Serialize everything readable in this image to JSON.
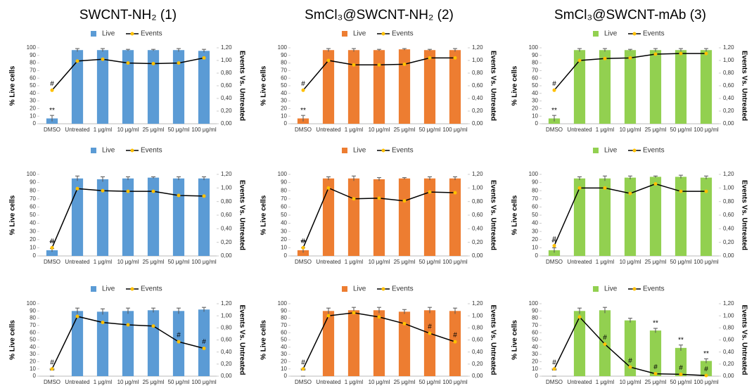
{
  "chart_data": [
    {
      "type": "bar",
      "title": "SWCNT-NH₂ (1)",
      "categories": [
        "DMSO",
        "Untreated",
        "1 μg/ml",
        "10 μg/ml",
        "25 μg/ml",
        "50 μg/ml",
        "100 μg/ml"
      ],
      "ylabel": "% Live cells",
      "y2label": "Events Vs. Untreated",
      "ylim": [
        0,
        100
      ],
      "yticks": [
        0,
        10,
        20,
        30,
        40,
        50,
        60,
        70,
        80,
        90,
        100
      ],
      "y2lim": [
        0,
        1.2
      ],
      "y2ticks": [
        {
          "value": 0,
          "label": "0,00"
        },
        {
          "value": 0.2,
          "label": "0,20"
        },
        {
          "value": 0.4,
          "label": "0,40"
        },
        {
          "value": 0.6,
          "label": "0,60"
        },
        {
          "value": 0.8,
          "label": "0,80"
        },
        {
          "value": 1,
          "label": "1,00"
        },
        {
          "value": 1.2,
          "label": "1,20"
        }
      ],
      "series": [
        {
          "name": "Live",
          "color": "#5b9bd5",
          "values": [
            7,
            97,
            97,
            97,
            97,
            97,
            96
          ],
          "errors": [
            4,
            2,
            2,
            1,
            1,
            2,
            2
          ],
          "annotations": [
            "**",
            null,
            null,
            null,
            null,
            null,
            null
          ]
        },
        {
          "name": "Events",
          "color": "#000000",
          "marker_color": "#ffc000",
          "axis": "y2",
          "values": [
            0.53,
            0.99,
            1.02,
            0.96,
            0.95,
            0.96,
            1.04
          ],
          "annotations": [
            "#",
            null,
            null,
            null,
            null,
            null,
            null
          ]
        }
      ]
    },
    {
      "type": "bar",
      "title": "SmCl₃@SWCNT-NH₂ (2)",
      "categories": [
        "DMSO",
        "Untreated",
        "1 μg/ml",
        "10 μg/ml",
        "25 μg/ml",
        "50 μg/ml",
        "100 μg/ml"
      ],
      "ylabel": "% Live cells",
      "y2label": "Events Vs. Untreated",
      "ylim": [
        0,
        100
      ],
      "yticks": [
        0,
        10,
        20,
        30,
        40,
        50,
        60,
        70,
        80,
        90,
        100
      ],
      "y2lim": [
        0,
        1.2
      ],
      "y2ticks": [
        {
          "value": 0,
          "label": "0,00"
        },
        {
          "value": 0.2,
          "label": "0,20"
        },
        {
          "value": 0.4,
          "label": "0,40"
        },
        {
          "value": 0.6,
          "label": "0,60"
        },
        {
          "value": 0.8,
          "label": "0,80"
        },
        {
          "value": 1,
          "label": "1,00"
        },
        {
          "value": 1.2,
          "label": "1,20"
        }
      ],
      "series": [
        {
          "name": "Live",
          "color": "#ed7d31",
          "values": [
            7,
            97,
            97,
            97,
            98,
            97,
            97
          ],
          "errors": [
            4,
            2,
            2,
            1,
            1,
            1,
            2
          ],
          "annotations": [
            "**",
            null,
            null,
            null,
            null,
            null,
            null
          ]
        },
        {
          "name": "Events",
          "color": "#000000",
          "marker_color": "#ffc000",
          "axis": "y2",
          "values": [
            0.53,
            1.0,
            0.93,
            0.93,
            0.94,
            1.04,
            1.04
          ],
          "annotations": [
            "#",
            null,
            null,
            null,
            null,
            null,
            null
          ]
        }
      ]
    },
    {
      "type": "bar",
      "title": "SmCl₃@SWCNT-mAb (3)",
      "categories": [
        "DMSO",
        "Untreated",
        "1 μg/ml",
        "10 μg/ml",
        "25 μg/ml",
        "50 μg/ml",
        "100 μg/ml"
      ],
      "ylabel": "% Live cells",
      "y2label": "Events Vs. Untreated",
      "ylim": [
        0,
        100
      ],
      "yticks": [
        0,
        10,
        20,
        30,
        40,
        50,
        60,
        70,
        80,
        90,
        100
      ],
      "y2lim": [
        0,
        1.2
      ],
      "y2ticks": [
        {
          "value": 0,
          "label": "0,00"
        },
        {
          "value": 0.2,
          "label": "0,20"
        },
        {
          "value": 0.4,
          "label": "0,40"
        },
        {
          "value": 0.6,
          "label": "0,60"
        },
        {
          "value": 0.8,
          "label": "0,80"
        },
        {
          "value": 1,
          "label": "1,00"
        },
        {
          "value": 1.2,
          "label": "1,20"
        }
      ],
      "series": [
        {
          "name": "Live",
          "color": "#92d050",
          "values": [
            7,
            97,
            97,
            97,
            97,
            97,
            97
          ],
          "errors": [
            4,
            2,
            2,
            1,
            2,
            2,
            2
          ],
          "annotations": [
            "**",
            null,
            null,
            null,
            null,
            null,
            null
          ]
        },
        {
          "name": "Events",
          "color": "#000000",
          "marker_color": "#ffc000",
          "axis": "y2",
          "values": [
            0.53,
            1.0,
            1.03,
            1.04,
            1.1,
            1.11,
            1.11
          ],
          "annotations": [
            "#",
            null,
            null,
            null,
            null,
            null,
            null
          ]
        }
      ]
    },
    {
      "type": "bar",
      "categories": [
        "DMSO",
        "Untreated",
        "1 μg/ml",
        "10 μg/ml",
        "25 μg/ml",
        "50 μg/ml",
        "100 μg/ml"
      ],
      "ylabel": "% Live cells",
      "y2label": "Events Vs. Untreated",
      "ylim": [
        0,
        100
      ],
      "yticks": [
        0,
        10,
        20,
        30,
        40,
        50,
        60,
        70,
        80,
        90,
        100
      ],
      "y2lim": [
        0,
        1.2
      ],
      "y2ticks": [
        {
          "value": 0,
          "label": "0,00"
        },
        {
          "value": 0.2,
          "label": "0,20"
        },
        {
          "value": 0.4,
          "label": "0,40"
        },
        {
          "value": 0.6,
          "label": "0,60"
        },
        {
          "value": 0.8,
          "label": "0,80"
        },
        {
          "value": 1,
          "label": "1,00"
        },
        {
          "value": 1.2,
          "label": "1,20"
        }
      ],
      "series": [
        {
          "name": "Live",
          "color": "#5b9bd5",
          "values": [
            7,
            95,
            94,
            95,
            96,
            95,
            95
          ],
          "errors": [
            2,
            3,
            3,
            2,
            1,
            2,
            2
          ],
          "annotations": [
            "**",
            null,
            null,
            null,
            null,
            null,
            null
          ]
        },
        {
          "name": "Events",
          "color": "#000000",
          "marker_color": "#ffc000",
          "axis": "y2",
          "values": [
            0.12,
            0.99,
            0.96,
            0.95,
            0.95,
            0.89,
            0.88
          ],
          "annotations": [
            "#",
            null,
            null,
            null,
            null,
            null,
            null
          ]
        }
      ]
    },
    {
      "type": "bar",
      "categories": [
        "DMSO",
        "Untreated",
        "1 μg/ml",
        "10 μg/ml",
        "25 μg/ml",
        "50 μg/ml",
        "100 μg/ml"
      ],
      "ylabel": "% Live cells",
      "y2label": "Events Vs. Untreated",
      "ylim": [
        0,
        100
      ],
      "yticks": [
        0,
        10,
        20,
        30,
        40,
        50,
        60,
        70,
        80,
        90,
        100
      ],
      "y2lim": [
        0,
        1.2
      ],
      "y2ticks": [
        {
          "value": 0,
          "label": "0,00"
        },
        {
          "value": 0.2,
          "label": "0,20"
        },
        {
          "value": 0.4,
          "label": "0,40"
        },
        {
          "value": 0.6,
          "label": "0,60"
        },
        {
          "value": 0.8,
          "label": "0,80"
        },
        {
          "value": 1,
          "label": "1,00"
        },
        {
          "value": 1.2,
          "label": "1,20"
        }
      ],
      "series": [
        {
          "name": "Live",
          "color": "#ed7d31",
          "values": [
            7,
            95,
            95,
            94,
            95,
            95,
            95
          ],
          "errors": [
            3,
            2,
            3,
            2,
            1,
            2,
            2
          ],
          "annotations": [
            "**",
            null,
            null,
            null,
            null,
            null,
            null
          ]
        },
        {
          "name": "Events",
          "color": "#000000",
          "marker_color": "#ffc000",
          "axis": "y2",
          "values": [
            0.12,
            1.0,
            0.84,
            0.85,
            0.81,
            0.94,
            0.93
          ],
          "annotations": [
            "#",
            null,
            null,
            null,
            null,
            null,
            null
          ]
        }
      ]
    },
    {
      "type": "bar",
      "categories": [
        "DMSO",
        "Untreated",
        "1 μg/ml",
        "10 μg/ml",
        "25 μg/ml",
        "50 μg/ml",
        "100 μg/ml"
      ],
      "ylabel": "% Live cells",
      "y2label": "Events Vs. Untreated",
      "ylim": [
        0,
        100
      ],
      "yticks": [
        0,
        10,
        20,
        30,
        40,
        50,
        60,
        70,
        80,
        90,
        100
      ],
      "y2lim": [
        0,
        1.2
      ],
      "y2ticks": [
        {
          "value": 0,
          "label": "0,00"
        },
        {
          "value": 0.2,
          "label": "0,20"
        },
        {
          "value": 0.4,
          "label": "0,40"
        },
        {
          "value": 0.6,
          "label": "0,60"
        },
        {
          "value": 0.8,
          "label": "0,80"
        },
        {
          "value": 1,
          "label": "1,00"
        },
        {
          "value": 1.2,
          "label": "1,20"
        }
      ],
      "series": [
        {
          "name": "Live",
          "color": "#92d050",
          "values": [
            7,
            95,
            95,
            96,
            97,
            97,
            96
          ],
          "errors": [
            3,
            2,
            3,
            2,
            1,
            2,
            2
          ],
          "annotations": [
            "**",
            null,
            null,
            null,
            null,
            null,
            null
          ]
        },
        {
          "name": "Events",
          "color": "#000000",
          "marker_color": "#ffc000",
          "axis": "y2",
          "values": [
            0.15,
            1.0,
            1.0,
            0.92,
            1.06,
            0.95,
            0.95
          ],
          "annotations": [
            "#",
            null,
            null,
            null,
            null,
            null,
            null
          ]
        }
      ]
    },
    {
      "type": "bar",
      "categories": [
        "DMSO",
        "Untreated",
        "1 μg/ml",
        "10 μg/ml",
        "25 μg/ml",
        "50 μg/ml",
        "100 μg/ml"
      ],
      "ylabel": "% Live cells",
      "y2label": "Events Vs. Untreated",
      "ylim": [
        0,
        100
      ],
      "yticks": [
        0,
        10,
        20,
        30,
        40,
        50,
        60,
        70,
        80,
        90,
        100
      ],
      "y2lim": [
        0,
        1.2
      ],
      "y2ticks": [
        {
          "value": 0,
          "label": "0,00"
        },
        {
          "value": 0.2,
          "label": "0,20"
        },
        {
          "value": 0.4,
          "label": "0,40"
        },
        {
          "value": 0.6,
          "label": "0,60"
        },
        {
          "value": 0.8,
          "label": "0,80"
        },
        {
          "value": 1,
          "label": "1,00"
        },
        {
          "value": 1.2,
          "label": "1,20"
        }
      ],
      "series": [
        {
          "name": "Live",
          "color": "#5b9bd5",
          "values": [
            0,
            90,
            89,
            90,
            91,
            90,
            92
          ],
          "errors": [
            0,
            4,
            4,
            4,
            3,
            4,
            3
          ],
          "annotations": [
            "**",
            null,
            null,
            null,
            null,
            null,
            null
          ]
        },
        {
          "name": "Events",
          "color": "#000000",
          "marker_color": "#ffc000",
          "axis": "y2",
          "values": [
            0.12,
            0.99,
            0.89,
            0.85,
            0.83,
            0.57,
            0.46
          ],
          "annotations": [
            "#",
            null,
            null,
            null,
            null,
            "#",
            "#"
          ]
        }
      ]
    },
    {
      "type": "bar",
      "categories": [
        "DMSO",
        "Untreated",
        "1 μg/ml",
        "10 μg/ml",
        "25 μg/ml",
        "50 μg/ml",
        "100 μg/ml"
      ],
      "ylabel": "% Live cells",
      "y2label": "Events Vs. Untreated",
      "ylim": [
        0,
        100
      ],
      "yticks": [
        0,
        10,
        20,
        30,
        40,
        50,
        60,
        70,
        80,
        90,
        100
      ],
      "y2lim": [
        0,
        1.2
      ],
      "y2ticks": [
        {
          "value": 0,
          "label": "0,00"
        },
        {
          "value": 0.2,
          "label": "0,20"
        },
        {
          "value": 0.4,
          "label": "0,40"
        },
        {
          "value": 0.6,
          "label": "0,60"
        },
        {
          "value": 0.8,
          "label": "0,80"
        },
        {
          "value": 1,
          "label": "1,00"
        },
        {
          "value": 1.2,
          "label": "1,20"
        }
      ],
      "series": [
        {
          "name": "Live",
          "color": "#ed7d31",
          "values": [
            0,
            90,
            91,
            91,
            89,
            91,
            90
          ],
          "errors": [
            0,
            4,
            4,
            4,
            3,
            4,
            4
          ],
          "annotations": [
            "**",
            null,
            null,
            null,
            null,
            null,
            null
          ]
        },
        {
          "name": "Events",
          "color": "#000000",
          "marker_color": "#ffc000",
          "axis": "y2",
          "values": [
            0.12,
            1.0,
            1.05,
            0.98,
            0.87,
            0.71,
            0.57
          ],
          "annotations": [
            "#",
            null,
            null,
            null,
            null,
            "#",
            "#"
          ]
        }
      ]
    },
    {
      "type": "bar",
      "categories": [
        "DMSO",
        "Untreated",
        "1 μg/ml",
        "10 μg/ml",
        "25 μg/ml",
        "50 μg/ml",
        "100 μg/ml"
      ],
      "ylabel": "% Live cells",
      "y2label": "Events Vs. Untreated",
      "ylim": [
        0,
        100
      ],
      "yticks": [
        0,
        10,
        20,
        30,
        40,
        50,
        60,
        70,
        80,
        90,
        100
      ],
      "y2lim": [
        0,
        1.2
      ],
      "y2ticks": [
        {
          "value": 0,
          "label": "0,00"
        },
        {
          "value": 0.2,
          "label": "0,20"
        },
        {
          "value": 0.4,
          "label": "0,40"
        },
        {
          "value": 0.6,
          "label": "0,60"
        },
        {
          "value": 0.8,
          "label": "0,80"
        },
        {
          "value": 1,
          "label": "1,00"
        },
        {
          "value": 1.2,
          "label": "1,20"
        }
      ],
      "series": [
        {
          "name": "Live",
          "color": "#92d050",
          "values": [
            0,
            90,
            91,
            77,
            63,
            39,
            21
          ],
          "errors": [
            0,
            4,
            4,
            3,
            3,
            4,
            3
          ],
          "annotations": [
            "**",
            null,
            null,
            null,
            "**",
            "**",
            "**"
          ]
        },
        {
          "name": "Events",
          "color": "#000000",
          "marker_color": "#ffc000",
          "axis": "y2",
          "values": [
            0.12,
            0.98,
            0.53,
            0.15,
            0.04,
            0.03,
            0.01
          ],
          "annotations": [
            "#",
            null,
            "#",
            "#",
            "#",
            "#",
            "#"
          ]
        }
      ]
    }
  ]
}
